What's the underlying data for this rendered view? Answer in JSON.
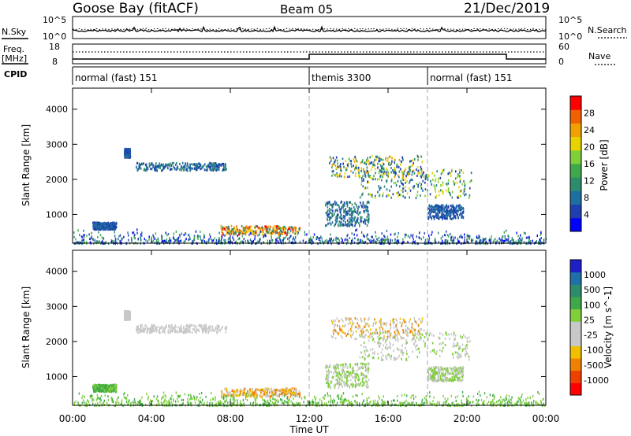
{
  "header": {
    "station": "Goose Bay (fitACF)",
    "beam": "Beam 05",
    "date": "21/Dec/2019"
  },
  "noise_panel": {
    "left_label": "N.Sky",
    "right_label": "N.Search",
    "left_ticks": [
      "10^5",
      "10^0"
    ],
    "right_ticks": [
      "10^5",
      "10^0"
    ]
  },
  "freq_panel": {
    "left_label_line1": "Freq.",
    "left_label_line2": "[MHz]",
    "right_label": "Nave",
    "left_ticks": [
      "18",
      "8"
    ],
    "right_ticks": [
      "60",
      "0"
    ]
  },
  "cpid_panel": {
    "label": "CPID",
    "segments": [
      {
        "name": "normal (fast) 151",
        "start_hour": 0
      },
      {
        "name": "themis 3300",
        "start_hour": 12
      },
      {
        "name": "normal (fast) 151",
        "start_hour": 18
      }
    ]
  },
  "colors": {
    "power_scale": [
      "#0000ff",
      "#1f3fae",
      "#1e6fa0",
      "#2e8b6e",
      "#3ea84a",
      "#7fcf3a",
      "#e8d300",
      "#f0a000",
      "#f06000",
      "#ff0000"
    ],
    "velocity_scale": [
      "#1f1fc8",
      "#1f6fa8",
      "#2e8b6e",
      "#3ea84a",
      "#7fcf3a",
      "#c8c8c8",
      "#c8c8c8",
      "#f0c000",
      "#f08000",
      "#f04000",
      "#ff0000"
    ]
  },
  "chart_data": [
    {
      "type": "heatmap",
      "name": "power",
      "ylabel": "Slant Range [km]",
      "y_ticks": [
        1000,
        2000,
        3000,
        4000
      ],
      "ylim": [
        180,
        4600
      ],
      "colorbar_label": "Power [dB]",
      "colorbar_ticks": [
        "4",
        "8",
        "12",
        "16",
        "20",
        "24",
        "28"
      ],
      "colorbar_range": [
        0,
        30
      ]
    },
    {
      "type": "heatmap",
      "name": "velocity",
      "ylabel": "Slant Range [km]",
      "y_ticks": [
        1000,
        2000,
        3000,
        4000
      ],
      "ylim": [
        180,
        4600
      ],
      "colorbar_label": "Velocity [m s^-1]",
      "colorbar_ticks": [
        "1000",
        "500",
        "100",
        "25",
        "-25",
        "-100",
        "-500",
        "-1000"
      ]
    }
  ],
  "time_axis": {
    "xlabel": "Time UT",
    "ticks": [
      "00:00",
      "04:00",
      "08:00",
      "12:00",
      "16:00",
      "20:00",
      "00:00"
    ],
    "range_hours": [
      0,
      24
    ]
  }
}
